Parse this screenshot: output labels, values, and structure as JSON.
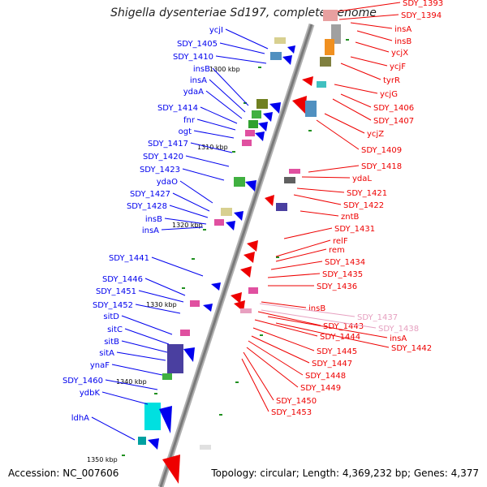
{
  "title": "Shigella dysenteriae Sd197, complete genome",
  "footer": {
    "accession": "Accession: NC_007606",
    "topology": "Topology: circular; Length: 4,369,232 bp; Genes: 4,377"
  },
  "kbp_ticks": [
    "1300 kbp",
    "1310 kbp",
    "1320 kbp",
    "1330 kbp",
    "1340 kbp",
    "1350 kbp"
  ],
  "left_labels": [
    "ycjI",
    "SDY_1405",
    "SDY_1410",
    "insB",
    "insA",
    "ydaA",
    "SDY_1414",
    "fnr",
    "ogt",
    "SDY_1417",
    "SDY_1420",
    "SDY_1423",
    "ydaO",
    "SDY_1427",
    "SDY_1428",
    "insB",
    "insA",
    "SDY_1441",
    "SDY_1446",
    "SDY_1451",
    "SDY_1452",
    "sitD",
    "sitC",
    "sitB",
    "sitA",
    "ynaF",
    "SDY_1460",
    "ydbK",
    "ldhA"
  ],
  "right_labels": [
    "SDY_1393",
    "SDY_1394",
    "insA",
    "insB",
    "ycjX",
    "ycjF",
    "tyrR",
    "ycjG",
    "SDY_1406",
    "SDY_1407",
    "ycjZ",
    "SDY_1409",
    "SDY_1418",
    "ydaL",
    "SDY_1421",
    "SDY_1422",
    "zntB",
    "SDY_1431",
    "relF",
    "rem",
    "SDY_1434",
    "SDY_1435",
    "SDY_1436",
    "insB",
    "SDY_1443",
    "SDY_1444",
    "SDY_1445",
    "SDY_1447",
    "SDY_1448",
    "SDY_1449",
    "SDY_1450",
    "SDY_1453"
  ],
  "right_faint_labels": [
    "SDY_1437",
    "SDY_1438",
    "insA",
    "SDY_1442"
  ],
  "colors": {
    "left_strand": "#0000ee",
    "right_strand": "#ee0000",
    "faint": "#e6a0c0",
    "backbone": "#888888"
  }
}
